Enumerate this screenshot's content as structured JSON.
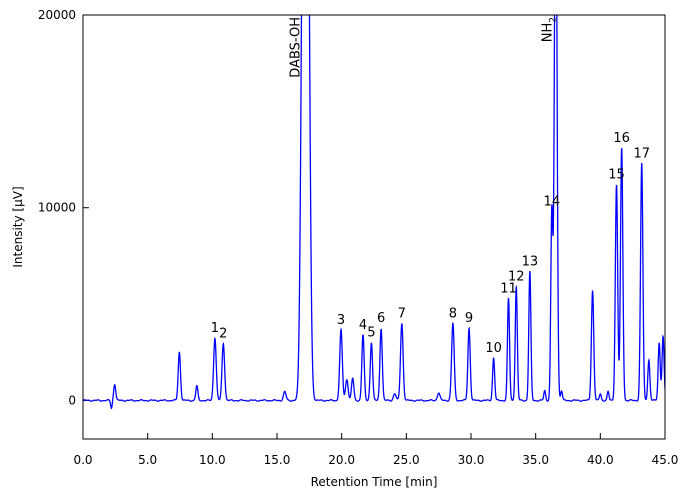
{
  "chart_data": {
    "type": "line",
    "title": "",
    "xlabel": "Retention Time [min]",
    "ylabel": "Intensity [µV]",
    "xlim": [
      0,
      45
    ],
    "ylim": [
      -2000,
      20000
    ],
    "xticks": [
      0.0,
      5.0,
      10.0,
      15.0,
      20.0,
      25.0,
      30.0,
      35.0,
      40.0,
      45.0
    ],
    "xtick_labels": [
      "0.0",
      "5.0",
      "10.0",
      "15.0",
      "20.0",
      "25.0",
      "30.0",
      "35.0",
      "40.0",
      "45.0"
    ],
    "yticks": [
      0,
      10000,
      20000
    ],
    "ytick_labels": [
      "0",
      "10000",
      "20000"
    ],
    "grid": false,
    "line_color": "#0000ff",
    "baseline": 0,
    "peaks": [
      {
        "t": 2.2,
        "h": -400,
        "w": 0.06
      },
      {
        "t": 2.45,
        "h": 850,
        "w": 0.08
      },
      {
        "t": 7.45,
        "h": 2500,
        "w": 0.09
      },
      {
        "t": 8.8,
        "h": 750,
        "w": 0.08
      },
      {
        "t": 10.2,
        "h": 3250,
        "w": 0.1
      },
      {
        "t": 10.85,
        "h": 2950,
        "w": 0.1
      },
      {
        "t": 15.6,
        "h": 450,
        "w": 0.1
      },
      {
        "t": 17.05,
        "h": 30000,
        "w": 0.17
      },
      {
        "t": 17.35,
        "h": 30000,
        "w": 0.17
      },
      {
        "t": 19.95,
        "h": 3650,
        "w": 0.1
      },
      {
        "t": 20.4,
        "h": 1100,
        "w": 0.1
      },
      {
        "t": 20.85,
        "h": 1150,
        "w": 0.09
      },
      {
        "t": 21.65,
        "h": 3400,
        "w": 0.09
      },
      {
        "t": 22.3,
        "h": 3000,
        "w": 0.09
      },
      {
        "t": 23.05,
        "h": 3750,
        "w": 0.09
      },
      {
        "t": 24.1,
        "h": 350,
        "w": 0.1
      },
      {
        "t": 24.65,
        "h": 4000,
        "w": 0.1
      },
      {
        "t": 27.5,
        "h": 400,
        "w": 0.1
      },
      {
        "t": 28.6,
        "h": 4000,
        "w": 0.1
      },
      {
        "t": 29.85,
        "h": 3750,
        "w": 0.09
      },
      {
        "t": 31.75,
        "h": 2200,
        "w": 0.08
      },
      {
        "t": 32.9,
        "h": 5300,
        "w": 0.08
      },
      {
        "t": 33.5,
        "h": 5900,
        "w": 0.08
      },
      {
        "t": 34.55,
        "h": 6700,
        "w": 0.08
      },
      {
        "t": 35.7,
        "h": 500,
        "w": 0.07
      },
      {
        "t": 36.25,
        "h": 9800,
        "w": 0.08
      },
      {
        "t": 36.55,
        "h": 30000,
        "w": 0.1
      },
      {
        "t": 37.0,
        "h": 500,
        "w": 0.07
      },
      {
        "t": 39.4,
        "h": 5700,
        "w": 0.09
      },
      {
        "t": 40.0,
        "h": 350,
        "w": 0.07
      },
      {
        "t": 40.6,
        "h": 450,
        "w": 0.07
      },
      {
        "t": 41.25,
        "h": 11200,
        "w": 0.09
      },
      {
        "t": 41.65,
        "h": 13100,
        "w": 0.09
      },
      {
        "t": 43.2,
        "h": 12300,
        "w": 0.09
      },
      {
        "t": 43.75,
        "h": 2100,
        "w": 0.08
      },
      {
        "t": 44.55,
        "h": 3000,
        "w": 0.08
      },
      {
        "t": 44.85,
        "h": 3300,
        "w": 0.08
      }
    ],
    "labels": [
      {
        "text": "1",
        "t": 10.2,
        "y": 3250
      },
      {
        "text": "2",
        "t": 10.85,
        "y": 2950
      },
      {
        "text": "DABS-OH",
        "t": 17.05,
        "y": 20000,
        "rotated": true
      },
      {
        "text": "3",
        "t": 19.95,
        "y": 3650
      },
      {
        "text": "4",
        "t": 21.65,
        "y": 3400
      },
      {
        "text": "5",
        "t": 22.3,
        "y": 3000
      },
      {
        "text": "6",
        "t": 23.05,
        "y": 3750
      },
      {
        "text": "7",
        "t": 24.65,
        "y": 4000
      },
      {
        "text": "8",
        "t": 28.6,
        "y": 4000
      },
      {
        "text": "9",
        "t": 29.85,
        "y": 3750
      },
      {
        "text": "10",
        "t": 31.75,
        "y": 2200
      },
      {
        "text": "11",
        "t": 32.9,
        "y": 5300
      },
      {
        "text": "12",
        "t": 33.5,
        "y": 5900
      },
      {
        "text": "13",
        "t": 34.55,
        "y": 6700
      },
      {
        "text": "14",
        "t": 36.25,
        "y": 9800
      },
      {
        "text": "NH2",
        "t": 36.55,
        "y": 20000,
        "rotated": true
      },
      {
        "text": "15",
        "t": 41.25,
        "y": 11200
      },
      {
        "text": "16",
        "t": 41.65,
        "y": 13100
      },
      {
        "text": "17",
        "t": 43.2,
        "y": 12300
      }
    ]
  }
}
